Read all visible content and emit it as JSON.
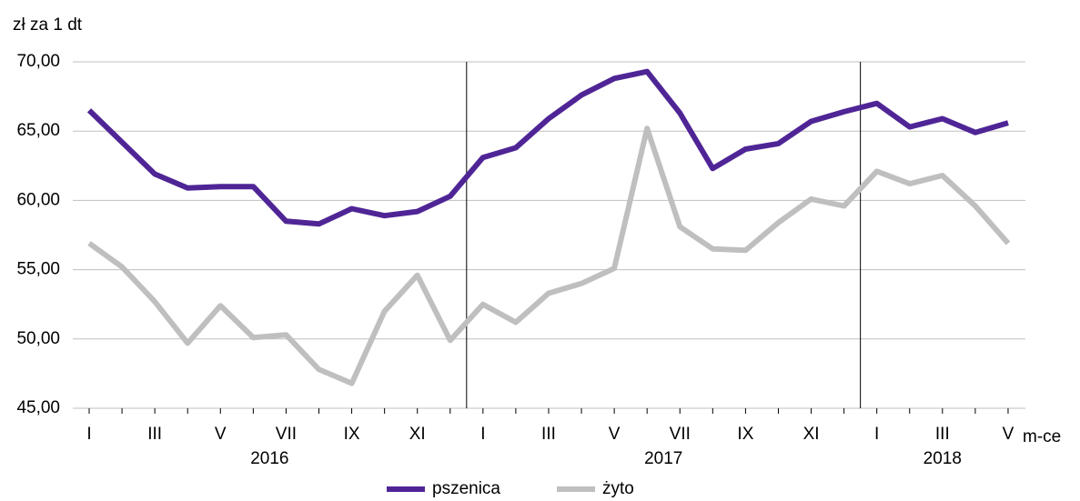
{
  "chart_data": {
    "type": "line",
    "y_axis_label": "zł za 1 dt",
    "x_axis_label": "m-ce",
    "categories": [
      "I",
      null,
      "III",
      null,
      "V",
      null,
      "VII",
      null,
      "IX",
      null,
      "XI",
      null,
      "I",
      null,
      "III",
      null,
      "V",
      null,
      "VII",
      null,
      "IX",
      null,
      "XI",
      null,
      "I",
      null,
      "III",
      null,
      "V"
    ],
    "years": [
      "2016",
      "2017",
      "2018"
    ],
    "series": [
      {
        "name": "pszenica",
        "color": "#4f2596",
        "values": [
          66.5,
          64.2,
          61.9,
          60.9,
          61.0,
          61.0,
          58.5,
          58.3,
          59.4,
          58.9,
          59.2,
          60.3,
          63.1,
          63.8,
          65.9,
          67.6,
          68.8,
          69.3,
          66.3,
          62.3,
          63.7,
          64.1,
          65.7,
          66.4,
          67.0,
          65.3,
          65.9,
          64.9,
          65.6
        ]
      },
      {
        "name": "żyto",
        "color": "#bfbfbf",
        "values": [
          56.9,
          55.2,
          52.7,
          49.7,
          52.4,
          50.1,
          50.3,
          47.8,
          46.8,
          52.0,
          54.6,
          49.9,
          52.5,
          51.2,
          53.3,
          54.0,
          55.1,
          65.2,
          58.1,
          56.5,
          56.4,
          58.4,
          60.1,
          59.6,
          62.1,
          61.2,
          61.8,
          59.6,
          56.9
        ]
      }
    ],
    "ylim": [
      45,
      70
    ],
    "yticks": [
      {
        "value": 45,
        "label": "45,00"
      },
      {
        "value": 50,
        "label": "50,00"
      },
      {
        "value": 55,
        "label": "55,00"
      },
      {
        "value": 60,
        "label": "60,00"
      },
      {
        "value": 65,
        "label": "65,00"
      },
      {
        "value": 70,
        "label": "70,00"
      }
    ],
    "grid": true,
    "legend": "bottom"
  }
}
